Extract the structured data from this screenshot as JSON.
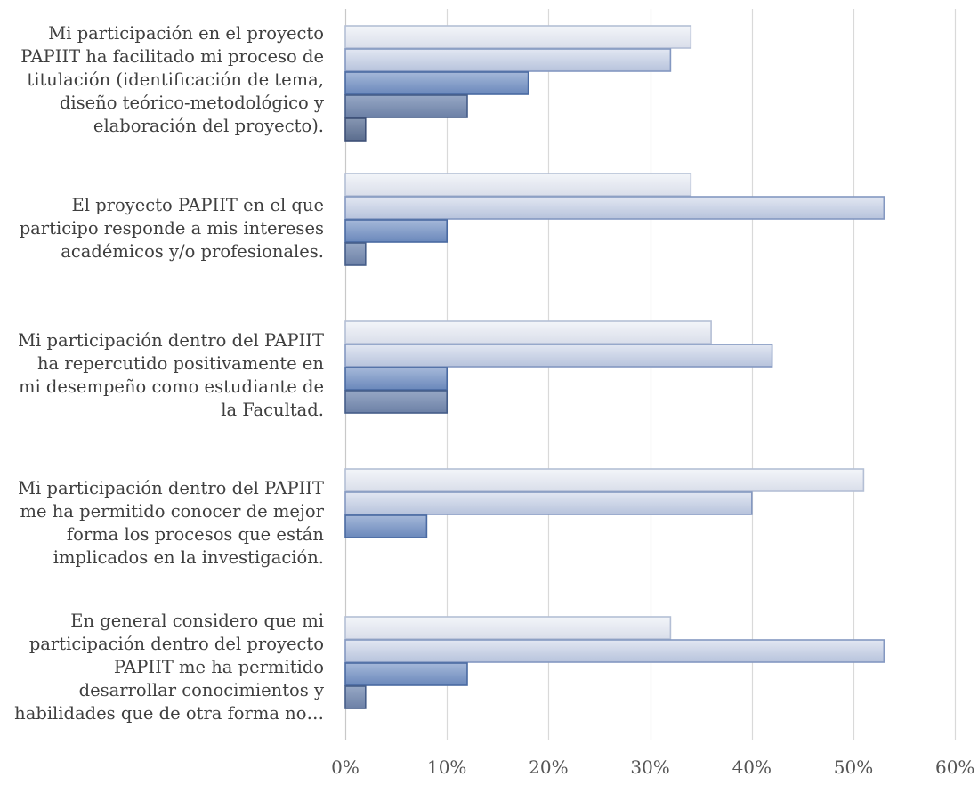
{
  "chart_data": {
    "type": "bar",
    "orientation": "horizontal",
    "categories": [
      "Mi participación en el proyecto PAPIIT ha facilitado mi proceso de titulación (identificación de tema, diseño teórico-metodológico y elaboración del proyecto).",
      "El proyecto PAPIIT en el que participo responde a mis intereses académicos y/o profesionales.",
      "Mi participación dentro del PAPIIT ha repercutido positivamente en mi desempeño como estudiante de la Facultad.",
      "Mi participación dentro del PAPIIT me ha permitido conocer de mejor forma los procesos que están implicados en la investigación.",
      "En general considero que mi participación dentro del proyecto PAPIIT me ha permitido desarrollar conocimientos y habilidades que de otra forma no…"
    ],
    "category_lines": [
      [
        "Mi participación en el proyecto",
        "PAPIIT ha facilitado mi proceso de",
        "titulación (identificación de tema,",
        "diseño teórico-metodológico y",
        "elaboración del proyecto)."
      ],
      [
        "El proyecto PAPIIT en el que",
        "participo responde a mis intereses",
        "académicos y/o profesionales."
      ],
      [
        "Mi participación dentro del PAPIIT",
        "ha repercutido positivamente en",
        "mi desempeño como estudiante de",
        "la Facultad."
      ],
      [
        "Mi participación dentro del PAPIIT",
        "me ha permitido conocer de mejor",
        "forma los procesos que están",
        "implicados en la investigación."
      ],
      [
        "En general considero que mi",
        "participación dentro del proyecto",
        "PAPIIT me ha permitido",
        "desarrollar conocimientos y",
        "habilidades que de otra forma no…"
      ]
    ],
    "series": [
      {
        "values": [
          34,
          34,
          36,
          51,
          32
        ]
      },
      {
        "values": [
          32,
          53,
          42,
          40,
          53
        ]
      },
      {
        "values": [
          18,
          10,
          10,
          8,
          12
        ]
      },
      {
        "values": [
          12,
          2,
          10,
          0,
          2
        ]
      },
      {
        "values": [
          2,
          0,
          0,
          0,
          0
        ]
      }
    ],
    "series_colors": [
      {
        "fill_top": "#f3f5f9",
        "fill_bottom": "#d9deea",
        "stroke": "#b4bfd5"
      },
      {
        "fill_top": "#e2e7f2",
        "fill_bottom": "#b7c3dc",
        "stroke": "#8498c1"
      },
      {
        "fill_top": "#a5b8d9",
        "fill_bottom": "#6a88bb",
        "stroke": "#4a6aa2"
      },
      {
        "fill_top": "#97a8c5",
        "fill_bottom": "#6c80a6",
        "stroke": "#455d89"
      },
      {
        "fill_top": "#8696b2",
        "fill_bottom": "#5b6d8e",
        "stroke": "#3e5077"
      }
    ],
    "xlim": [
      0,
      60
    ],
    "xticks": [
      "0%",
      "10%",
      "20%",
      "30%",
      "40%",
      "50%",
      "60%"
    ],
    "grid": true,
    "legend": "none"
  }
}
